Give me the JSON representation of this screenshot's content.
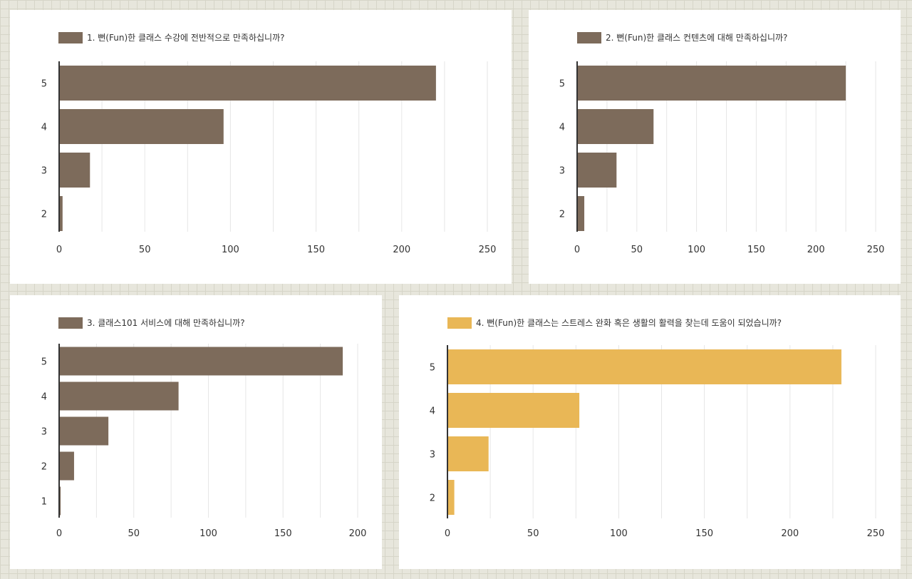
{
  "colors": {
    "brown": "#7d6b5b",
    "gold": "#e9b756",
    "grid": "#e6e6e6",
    "axis": "#333333"
  },
  "chart_data": [
    {
      "type": "bar",
      "orientation": "horizontal",
      "title": "1. 뻔(Fun)한 클래스 수강에 전반적으로 만족하십니까?",
      "categories": [
        "5",
        "4",
        "3",
        "2"
      ],
      "values": [
        220,
        96,
        18,
        2
      ],
      "xlim": [
        0,
        250
      ],
      "xticks": [
        0,
        50,
        100,
        150,
        200,
        250
      ],
      "color": "#7d6b5b",
      "grid": true,
      "legend": "top"
    },
    {
      "type": "bar",
      "orientation": "horizontal",
      "title": "2. 뻔(Fun)한 클래스 컨텐츠에 대해 만족하십니까?",
      "categories": [
        "5",
        "4",
        "3",
        "2"
      ],
      "values": [
        225,
        64,
        33,
        6
      ],
      "xlim": [
        0,
        250
      ],
      "xticks": [
        0,
        50,
        100,
        150,
        200,
        250
      ],
      "color": "#7d6b5b",
      "grid": true,
      "legend": "top"
    },
    {
      "type": "bar",
      "orientation": "horizontal",
      "title": "3. 클래스101 서비스에 대해 만족하십니까?",
      "categories": [
        "5",
        "4",
        "3",
        "2",
        "1"
      ],
      "values": [
        190,
        80,
        33,
        10,
        1
      ],
      "xlim": [
        0,
        200
      ],
      "xticks": [
        0,
        50,
        100,
        150,
        200
      ],
      "color": "#7d6b5b",
      "grid": true,
      "legend": "top"
    },
    {
      "type": "bar",
      "orientation": "horizontal",
      "title": "4. 뻔(Fun)한 클래스는 스트레스 완화 혹은 생활의 활력을 찾는데 도움이 되었습니까?",
      "categories": [
        "5",
        "4",
        "3",
        "2"
      ],
      "values": [
        230,
        77,
        24,
        4
      ],
      "xlim": [
        0,
        250
      ],
      "xticks": [
        0,
        50,
        100,
        150,
        200,
        250
      ],
      "color": "#e9b756",
      "grid": true,
      "legend": "top"
    }
  ]
}
